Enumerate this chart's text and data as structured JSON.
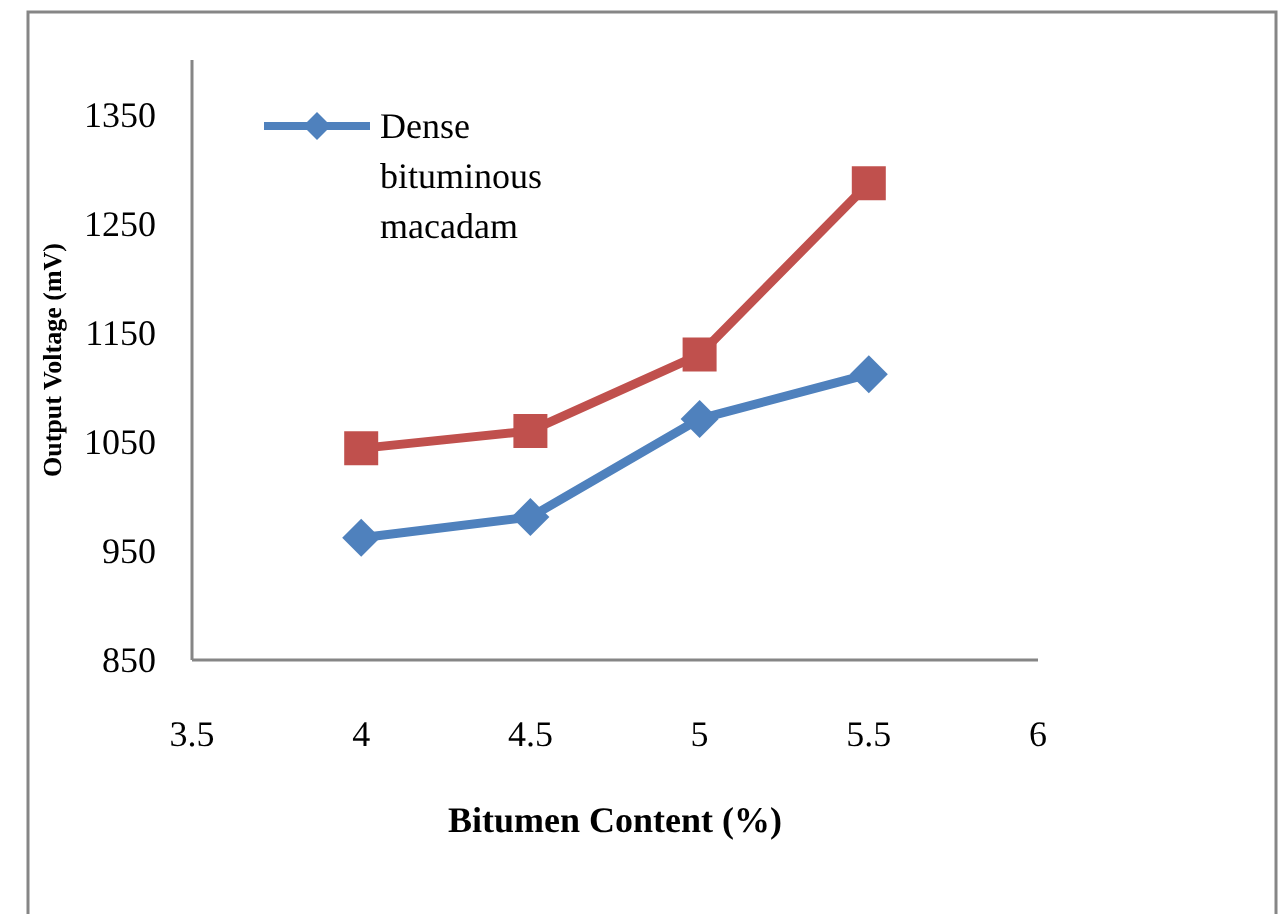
{
  "chart_data": {
    "type": "line",
    "xlabel": "Bitumen Content (%)",
    "ylabel": "Output Voltage (mV)",
    "x": [
      4,
      4.5,
      5,
      5.5
    ],
    "series": [
      {
        "name": "Dense bituminous macadam",
        "color": "#4f81bd",
        "marker": "diamond",
        "values": [
          962,
          981,
          1071,
          1112
        ]
      },
      {
        "color": "#c0504d",
        "marker": "square",
        "values": [
          1044,
          1060,
          1130,
          1287
        ]
      }
    ],
    "xlim": [
      3.5,
      6
    ],
    "xticks": [
      3.5,
      4,
      4.5,
      5,
      5.5,
      6
    ],
    "ylim": [
      850,
      1400
    ],
    "yticks": [
      850,
      950,
      1050,
      1150,
      1250,
      1350
    ],
    "legend": "top left"
  }
}
